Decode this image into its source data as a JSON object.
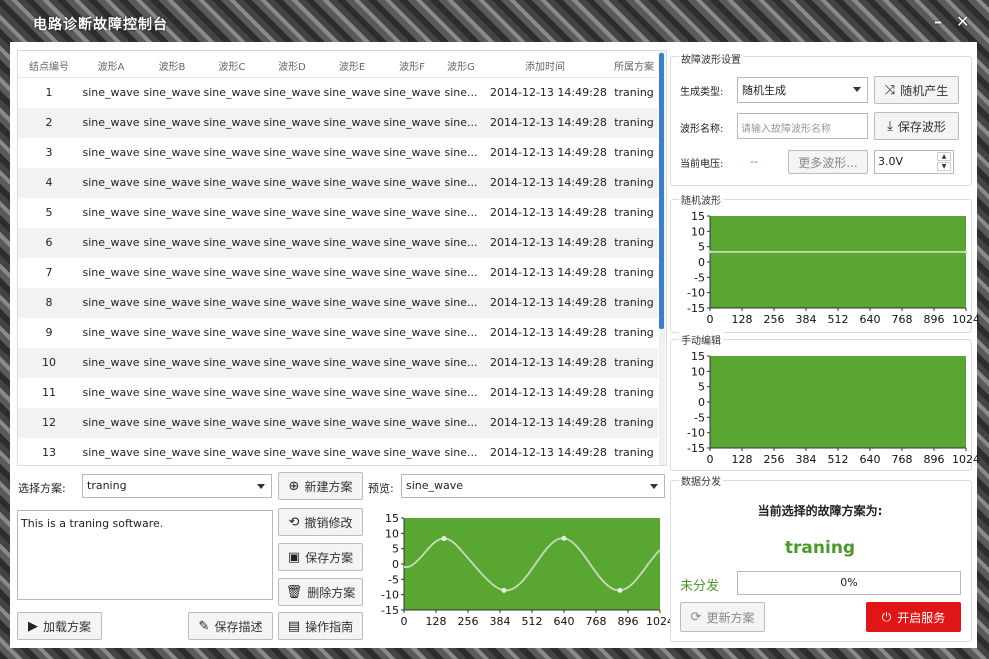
{
  "window": {
    "title": "电路诊断故障控制台",
    "minimize_icon": "minimize-icon",
    "close_icon": "close-icon"
  },
  "table": {
    "columns": [
      "结点编号",
      "波形A",
      "波形B",
      "波形C",
      "波形D",
      "波形E",
      "波形F",
      "波形G",
      "添加时间",
      "所属方案"
    ],
    "rows": [
      [
        "1",
        "sine_wave",
        "sine_wave",
        "sine_wave",
        "sine_wave",
        "sine_wave",
        "sine_wave",
        "sine...",
        "2014-12-13 14:49:28",
        "traning"
      ],
      [
        "2",
        "sine_wave",
        "sine_wave",
        "sine_wave",
        "sine_wave",
        "sine_wave",
        "sine_wave",
        "sine...",
        "2014-12-13 14:49:28",
        "traning"
      ],
      [
        "3",
        "sine_wave",
        "sine_wave",
        "sine_wave",
        "sine_wave",
        "sine_wave",
        "sine_wave",
        "sine...",
        "2014-12-13 14:49:28",
        "traning"
      ],
      [
        "4",
        "sine_wave",
        "sine_wave",
        "sine_wave",
        "sine_wave",
        "sine_wave",
        "sine_wave",
        "sine...",
        "2014-12-13 14:49:28",
        "traning"
      ],
      [
        "5",
        "sine_wave",
        "sine_wave",
        "sine_wave",
        "sine_wave",
        "sine_wave",
        "sine_wave",
        "sine...",
        "2014-12-13 14:49:28",
        "traning"
      ],
      [
        "6",
        "sine_wave",
        "sine_wave",
        "sine_wave",
        "sine_wave",
        "sine_wave",
        "sine_wave",
        "sine...",
        "2014-12-13 14:49:28",
        "traning"
      ],
      [
        "7",
        "sine_wave",
        "sine_wave",
        "sine_wave",
        "sine_wave",
        "sine_wave",
        "sine_wave",
        "sine...",
        "2014-12-13 14:49:28",
        "traning"
      ],
      [
        "8",
        "sine_wave",
        "sine_wave",
        "sine_wave",
        "sine_wave",
        "sine_wave",
        "sine_wave",
        "sine...",
        "2014-12-13 14:49:28",
        "traning"
      ],
      [
        "9",
        "sine_wave",
        "sine_wave",
        "sine_wave",
        "sine_wave",
        "sine_wave",
        "sine_wave",
        "sine...",
        "2014-12-13 14:49:28",
        "traning"
      ],
      [
        "10",
        "sine_wave",
        "sine_wave",
        "sine_wave",
        "sine_wave",
        "sine_wave",
        "sine_wave",
        "sine...",
        "2014-12-13 14:49:28",
        "traning"
      ],
      [
        "11",
        "sine_wave",
        "sine_wave",
        "sine_wave",
        "sine_wave",
        "sine_wave",
        "sine_wave",
        "sine...",
        "2014-12-13 14:49:28",
        "traning"
      ],
      [
        "12",
        "sine_wave",
        "sine_wave",
        "sine_wave",
        "sine_wave",
        "sine_wave",
        "sine_wave",
        "sine...",
        "2014-12-13 14:49:28",
        "traning"
      ],
      [
        "13",
        "sine_wave",
        "sine_wave",
        "sine_wave",
        "sine_wave",
        "sine_wave",
        "sine_wave",
        "sine...",
        "2014-12-13 14:49:28",
        "traning"
      ]
    ]
  },
  "scheme": {
    "label": "选择方案:",
    "selected": "traning",
    "description": "This is a traning software.",
    "buttons": {
      "new": "新建方案",
      "undo": "撤销修改",
      "save": "保存方案",
      "delete": "删除方案",
      "load": "加载方案",
      "save_desc": "保存描述",
      "guide": "操作指南"
    }
  },
  "preview": {
    "label": "预览:",
    "selected": "sine_wave"
  },
  "fault_settings": {
    "title": "故障波形设置",
    "gen_type_label": "生成类型:",
    "gen_type_value": "随机生成",
    "random_button": "随机产生",
    "name_label": "波形名称:",
    "name_placeholder": "请输入故障波形名称",
    "save_wave_button": "保存波形",
    "voltage_label": "当前电压:",
    "voltage_value": "--",
    "more_waves_button": "更多波形...",
    "voltage_spin": "3.0V"
  },
  "random_wave": {
    "title": "随机波形"
  },
  "manual_edit": {
    "title": "手动编辑"
  },
  "distribution": {
    "title": "数据分发",
    "current_scheme_label": "当前选择的故障方案为:",
    "current_scheme_value": "traning",
    "status_text": "未分发",
    "progress_text": "0%",
    "progress": 0,
    "update_button": "更新方案",
    "start_button": "开启服务"
  },
  "colors": {
    "plot_green": "#5aa632",
    "accent_green": "#4a9a2a",
    "start_red": "#e01616",
    "scroll_blue": "#3a7fc9"
  },
  "chart_data": [
    {
      "type": "line",
      "name": "preview",
      "x": [
        0,
        16,
        32,
        48,
        64,
        80,
        96,
        112,
        128,
        144,
        160,
        176,
        192,
        208,
        224,
        240,
        256,
        272,
        288,
        304,
        320,
        336,
        352,
        368,
        384,
        400,
        416,
        432,
        448,
        464,
        480,
        496,
        512,
        528,
        544,
        560,
        576,
        592,
        608,
        624,
        640,
        656,
        672,
        688,
        704,
        720,
        736,
        752,
        768,
        784,
        800,
        816,
        832,
        848,
        864,
        880,
        896,
        912,
        928,
        944,
        960,
        976,
        992,
        1008,
        1024
      ],
      "y": [
        -1.0,
        -1.0,
        -0.4,
        0.6,
        1.9,
        3.4,
        4.9,
        6.3,
        7.4,
        8.1,
        8.3,
        8.1,
        7.4,
        6.3,
        4.9,
        3.4,
        1.9,
        0.4,
        -1.1,
        -2.6,
        -4.0,
        -5.3,
        -6.5,
        -7.5,
        -8.2,
        -8.6,
        -8.6,
        -8.2,
        -7.5,
        -6.4,
        -5.0,
        -3.4,
        -1.6,
        0.3,
        2.1,
        3.9,
        5.5,
        6.8,
        7.8,
        8.3,
        8.4,
        8.0,
        7.2,
        6.0,
        4.5,
        2.8,
        1.0,
        -0.9,
        -2.7,
        -4.4,
        -5.9,
        -7.1,
        -8.0,
        -8.5,
        -8.6,
        -8.3,
        -7.6,
        -6.6,
        -5.2,
        -3.6,
        -1.9,
        -0.1,
        1.6,
        3.2,
        4.6
      ],
      "xticks": [
        0,
        128,
        256,
        384,
        512,
        640,
        768,
        896,
        1024
      ],
      "yticks": [
        -15,
        -10,
        -5,
        0,
        5,
        10,
        15
      ],
      "xlim": [
        0,
        1024
      ],
      "ylim": [
        -15,
        15
      ]
    },
    {
      "type": "line",
      "name": "random_wave",
      "x": [
        0,
        1024
      ],
      "y": [
        3.3,
        3.3
      ],
      "xticks": [
        0,
        128,
        256,
        384,
        512,
        640,
        768,
        896,
        1024
      ],
      "yticks": [
        -15,
        -10,
        -5,
        0,
        5,
        10,
        15
      ],
      "xlim": [
        0,
        1024
      ],
      "ylim": [
        -15,
        15
      ]
    },
    {
      "type": "line",
      "name": "manual_edit",
      "x": [],
      "y": [],
      "xticks": [
        0,
        128,
        256,
        384,
        512,
        640,
        768,
        896,
        1024
      ],
      "yticks": [
        -15,
        -10,
        -5,
        0,
        5,
        10,
        15
      ],
      "xlim": [
        0,
        1024
      ],
      "ylim": [
        -15,
        15
      ]
    }
  ]
}
